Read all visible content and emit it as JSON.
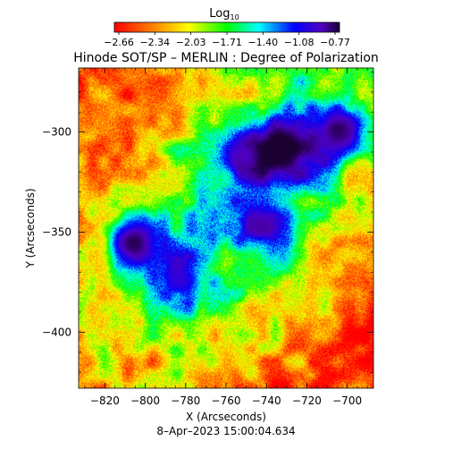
{
  "chart_data": {
    "type": "heatmap",
    "title": "Hinode SOT/SP – MERLIN : Degree of Polarization",
    "xlabel": "X (Arcseconds)",
    "ylabel": "Y (Arcseconds)",
    "timestamp": "8–Apr–2023 15:00:04.634",
    "colorbar": {
      "label": "Log",
      "label_sub": "10",
      "ticks": [
        "−2.66",
        "−2.34",
        "−2.03",
        "−1.71",
        "−1.40",
        "−1.08",
        "−0.77"
      ],
      "range": [
        -2.66,
        -0.77
      ],
      "colors": [
        "#ff0000",
        "#ff8000",
        "#ffff00",
        "#00ff00",
        "#00ffff",
        "#0000ff",
        "#5000c0",
        "#1a0030"
      ]
    },
    "xlim": [
      -833,
      -687
    ],
    "ylim": [
      -428,
      -268
    ],
    "x_ticks": [
      -820,
      -800,
      -780,
      -760,
      -740,
      -720,
      -700
    ],
    "x_tick_labels": [
      "−820",
      "−800",
      "−780",
      "−760",
      "−740",
      "−720",
      "−700"
    ],
    "y_ticks": [
      -300,
      -350,
      -400
    ],
    "y_tick_labels": [
      "−300",
      "−350",
      "−400"
    ],
    "features": [
      {
        "kind": "sunspot",
        "x": -806,
        "y": -355,
        "value": -0.85
      },
      {
        "kind": "sunspot",
        "x": -733,
        "y": -307,
        "value": -0.85
      },
      {
        "kind": "sunspot",
        "x": -705,
        "y": -299,
        "value": -0.85
      },
      {
        "kind": "pore",
        "x": -743,
        "y": -346,
        "value": -1.0
      },
      {
        "kind": "pore",
        "x": -751,
        "y": -312,
        "value": -1.05
      },
      {
        "kind": "pore",
        "x": -784,
        "y": -373,
        "value": -1.15
      }
    ],
    "grid": false
  }
}
